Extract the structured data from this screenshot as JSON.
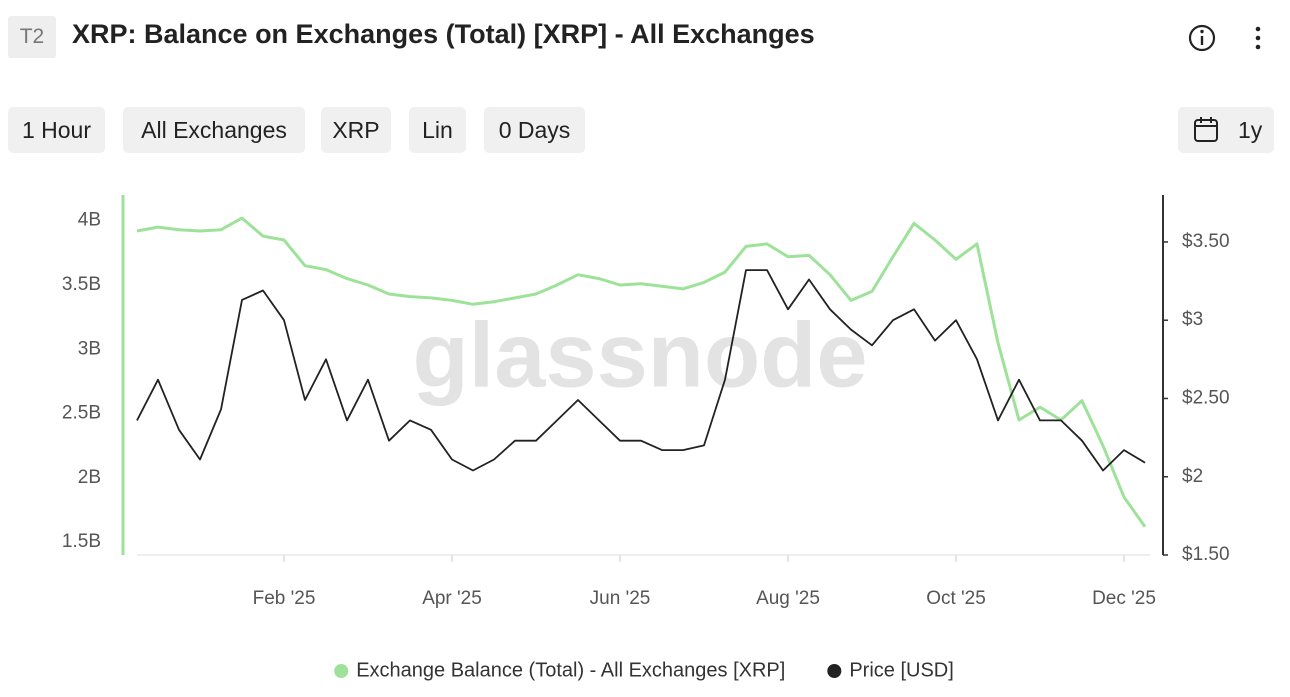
{
  "header": {
    "badge": "T2",
    "title": "XRP: Balance on Exchanges (Total) [XRP] - All Exchanges"
  },
  "controls": [
    "1 Hour",
    "All Exchanges",
    "XRP",
    "Lin",
    "0 Days"
  ],
  "range": "1y",
  "chart_data": {
    "type": "line",
    "watermark": "glassnode",
    "categories": [
      null,
      null,
      null,
      null,
      null,
      null,
      null,
      "Feb '25",
      null,
      null,
      null,
      null,
      null,
      null,
      null,
      "Apr '25",
      null,
      null,
      null,
      null,
      null,
      null,
      null,
      "Jun '25",
      null,
      null,
      null,
      null,
      null,
      null,
      null,
      "Aug '25",
      null,
      null,
      null,
      null,
      null,
      null,
      null,
      "Oct '25",
      null,
      null,
      null,
      null,
      null,
      null,
      null,
      "Dec '25",
      null
    ],
    "series": [
      {
        "name": "Exchange Balance (Total) - All Exchanges [XRP]",
        "color": "#9ee29a",
        "values": [
          3920000000,
          3950000000,
          3930000000,
          3920000000,
          3930000000,
          4020000000,
          3880000000,
          3850000000,
          3650000000,
          3620000000,
          3550000000,
          3500000000,
          3430000000,
          3410000000,
          3400000000,
          3380000000,
          3350000000,
          3370000000,
          3400000000,
          3430000000,
          3500000000,
          3580000000,
          3550000000,
          3500000000,
          3510000000,
          3490000000,
          3470000000,
          3520000000,
          3600000000,
          3800000000,
          3820000000,
          3720000000,
          3730000000,
          3580000000,
          3380000000,
          3450000000,
          3720000000,
          3980000000,
          3850000000,
          3700000000,
          3820000000,
          3050000000,
          2450000000,
          2550000000,
          2450000000,
          2600000000,
          2250000000,
          1850000000,
          1620000000
        ]
      },
      {
        "name": "Price [USD]",
        "color": "#222222",
        "axis": "y2",
        "values": [
          2.36,
          2.62,
          2.3,
          2.11,
          2.43,
          3.13,
          3.19,
          3.0,
          2.49,
          2.75,
          2.36,
          2.62,
          2.23,
          2.36,
          2.3,
          2.11,
          2.04,
          2.11,
          2.23,
          2.23,
          2.36,
          2.49,
          2.36,
          2.23,
          2.23,
          2.17,
          2.17,
          2.2,
          2.62,
          3.32,
          3.32,
          3.07,
          3.26,
          3.07,
          2.94,
          2.84,
          3.0,
          3.07,
          2.87,
          3.0,
          2.75,
          2.36,
          2.62,
          2.36,
          2.36,
          2.23,
          2.04,
          2.17,
          2.09
        ]
      }
    ],
    "ylim": [
      1400000000,
      4200000000
    ],
    "yticks": [
      {
        "value": 1500000000,
        "label": "1.5B"
      },
      {
        "value": 2000000000,
        "label": "2B"
      },
      {
        "value": 2500000000,
        "label": "2.5B"
      },
      {
        "value": 3000000000,
        "label": "3B"
      },
      {
        "value": 3500000000,
        "label": "3.5B"
      },
      {
        "value": 4000000000,
        "label": "4B"
      }
    ],
    "y2lim": [
      1.5,
      3.8
    ],
    "y2ticks": [
      {
        "value": 1.5,
        "label": "$1.50"
      },
      {
        "value": 2,
        "label": "$2"
      },
      {
        "value": 2.5,
        "label": "$2.50"
      },
      {
        "value": 3,
        "label": "$3"
      },
      {
        "value": 3.5,
        "label": "$3.50"
      }
    ],
    "grid": false,
    "legend": "bottom"
  }
}
